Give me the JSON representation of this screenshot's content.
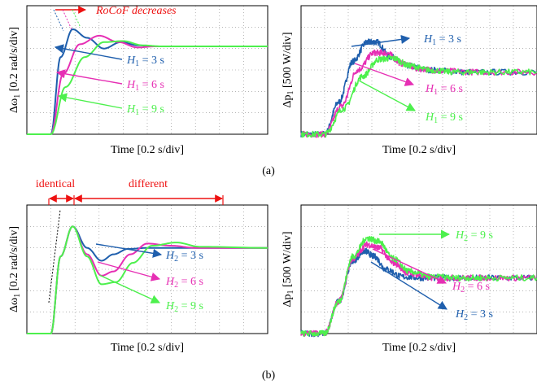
{
  "colors": {
    "blue": "#1f5fad",
    "magenta": "#e62fb4",
    "green": "#4df04d",
    "red": "#ee1111",
    "frame": "#000000",
    "grid": "#888888"
  },
  "captions": {
    "a": "(a)",
    "b": "(b)"
  },
  "chart_data": [
    {
      "id": "a-left",
      "type": "line",
      "xlabel": "Time [0.2 s/div]",
      "ylabel_parts": [
        "Δω",
        "1",
        " [0.2 rad/s/div]"
      ],
      "xlim": [
        0,
        10
      ],
      "ylim": [
        0,
        6
      ],
      "series": [
        {
          "name": "H1 = 3 s",
          "color": "blue",
          "x": [
            0,
            1,
            1.4,
            1.9,
            2.5,
            3.2,
            3.9,
            4.6,
            5.3,
            6,
            7,
            8,
            10
          ],
          "y": [
            0,
            0,
            3.6,
            4.9,
            4.5,
            4.0,
            4.3,
            4.15,
            4.1,
            4.1,
            4.1,
            4.1,
            4.1
          ]
        },
        {
          "name": "H1 = 6 s",
          "color": "magenta",
          "x": [
            0,
            1,
            1.5,
            2.2,
            3,
            3.8,
            4.6,
            5.3,
            6,
            7,
            8,
            10
          ],
          "y": [
            0,
            0,
            2.8,
            4.2,
            4.6,
            4.3,
            4.05,
            4.1,
            4.1,
            4.1,
            4.1,
            4.1
          ]
        },
        {
          "name": "H1 = 9 s",
          "color": "green",
          "x": [
            0,
            1,
            1.6,
            2.4,
            3.2,
            4,
            4.8,
            5.6,
            6.5,
            8,
            10
          ],
          "y": [
            0,
            0,
            2.2,
            3.6,
            4.3,
            4.35,
            4.15,
            4.1,
            4.1,
            4.1,
            4.1
          ]
        }
      ],
      "annotations": [
        {
          "parts": [
            "H",
            "1",
            " = 3 s"
          ],
          "color": "blue"
        },
        {
          "parts": [
            "H",
            "1",
            " = 6 s"
          ],
          "color": "magenta"
        },
        {
          "parts": [
            "H",
            "1",
            " = 9 s"
          ],
          "color": "green"
        },
        {
          "parts": [
            "RoCoF decreases"
          ],
          "color": "red"
        }
      ]
    },
    {
      "id": "a-right",
      "type": "line",
      "xlabel": "Time [0.2 s/div]",
      "ylabel_parts": [
        "Δp",
        "1",
        " [500 W/div]"
      ],
      "xlim": [
        0,
        10
      ],
      "ylim": [
        0,
        6
      ],
      "series": [
        {
          "name": "H1 = 3 s",
          "color": "blue",
          "x": [
            0,
            1,
            1.6,
            2.2,
            2.8,
            3.2,
            3.8,
            4.5,
            5.5,
            7,
            10
          ],
          "y": [
            0,
            0,
            1.5,
            3.4,
            4.3,
            4.3,
            3.6,
            3.2,
            3.0,
            2.9,
            2.9
          ]
        },
        {
          "name": "H1 = 6 s",
          "color": "magenta",
          "x": [
            0,
            1,
            1.7,
            2.4,
            3.1,
            3.6,
            4.3,
            5,
            6,
            7.5,
            10
          ],
          "y": [
            0,
            0,
            1.3,
            3.0,
            3.8,
            3.8,
            3.3,
            3.05,
            2.95,
            2.9,
            2.9
          ]
        },
        {
          "name": "H1 = 9 s",
          "color": "green",
          "x": [
            0,
            1,
            1.8,
            2.6,
            3.3,
            3.9,
            4.6,
            5.4,
            6.5,
            8,
            10
          ],
          "y": [
            0,
            0,
            1.2,
            2.7,
            3.5,
            3.55,
            3.2,
            3.0,
            2.9,
            2.9,
            2.9
          ]
        }
      ],
      "annotations": [
        {
          "parts": [
            "H",
            "1",
            " = 3 s"
          ],
          "color": "blue"
        },
        {
          "parts": [
            "H",
            "1",
            " = 6 s"
          ],
          "color": "magenta"
        },
        {
          "parts": [
            "H",
            "1",
            " = 9 s"
          ],
          "color": "green"
        }
      ]
    },
    {
      "id": "b-left",
      "type": "line",
      "xlabel": "Time [0.2 s/div]",
      "ylabel_parts": [
        "Δω",
        "1",
        " [0.2 rad/s/div]"
      ],
      "xlim": [
        0,
        10
      ],
      "ylim": [
        0,
        6
      ],
      "series": [
        {
          "name": "H2 = 3 s",
          "color": "blue",
          "x": [
            0,
            1,
            1.4,
            1.9,
            2.5,
            3.1,
            3.6,
            4.2,
            5,
            6,
            7,
            8,
            10
          ],
          "y": [
            0,
            0,
            3.6,
            5.0,
            4.0,
            3.4,
            3.7,
            3.95,
            4.0,
            4.0,
            4.0,
            4.0,
            4.0
          ]
        },
        {
          "name": "H2 = 6 s",
          "color": "magenta",
          "x": [
            0,
            1,
            1.4,
            1.9,
            2.5,
            3.1,
            3.6,
            4.3,
            5,
            6,
            7,
            10
          ],
          "y": [
            0,
            0,
            3.6,
            5.0,
            3.7,
            2.7,
            2.9,
            3.7,
            4.2,
            4.1,
            4.0,
            4.0
          ]
        },
        {
          "name": "H2 = 9 s",
          "color": "green",
          "x": [
            0,
            1,
            1.4,
            1.9,
            2.5,
            3.1,
            3.7,
            4.4,
            5.2,
            6.2,
            7.2,
            10
          ],
          "y": [
            0,
            0,
            3.6,
            5.0,
            3.6,
            2.3,
            2.4,
            3.3,
            4.1,
            4.25,
            4.05,
            4.0
          ]
        }
      ],
      "annotations": [
        {
          "parts": [
            "H",
            "2",
            " = 3 s"
          ],
          "color": "blue"
        },
        {
          "parts": [
            "H",
            "2",
            " = 6 s"
          ],
          "color": "magenta"
        },
        {
          "parts": [
            "H",
            "2",
            " = 9 s"
          ],
          "color": "green"
        },
        {
          "parts": [
            "identical"
          ],
          "color": "red"
        },
        {
          "parts": [
            "different"
          ],
          "color": "red"
        }
      ]
    },
    {
      "id": "b-right",
      "type": "line",
      "xlabel": "Time [0.2 s/div]",
      "ylabel_parts": [
        "Δp",
        "1",
        " [500 W/div]"
      ],
      "xlim": [
        0,
        10
      ],
      "ylim": [
        0,
        6
      ],
      "series": [
        {
          "name": "H2 = 3 s",
          "color": "blue",
          "x": [
            0,
            1,
            1.6,
            2.2,
            2.7,
            3.1,
            3.6,
            4.3,
            5.2,
            6.5,
            8,
            10
          ],
          "y": [
            0,
            0,
            1.5,
            3.4,
            3.85,
            3.6,
            3.0,
            2.65,
            2.6,
            2.6,
            2.6,
            2.6
          ]
        },
        {
          "name": "H2 = 6 s",
          "color": "magenta",
          "x": [
            0,
            1,
            1.6,
            2.2,
            2.8,
            3.3,
            3.9,
            4.6,
            5.5,
            6.8,
            8,
            10
          ],
          "y": [
            0,
            0,
            1.5,
            3.5,
            4.15,
            4.0,
            3.3,
            2.8,
            2.6,
            2.6,
            2.6,
            2.6
          ]
        },
        {
          "name": "H2 = 9 s",
          "color": "green",
          "x": [
            0,
            1,
            1.6,
            2.2,
            2.8,
            3.3,
            3.9,
            4.6,
            5.5,
            6.8,
            8,
            10
          ],
          "y": [
            0,
            0,
            1.5,
            3.6,
            4.45,
            4.3,
            3.5,
            2.9,
            2.65,
            2.6,
            2.6,
            2.6
          ]
        }
      ],
      "annotations": [
        {
          "parts": [
            "H",
            "2",
            " = 9 s"
          ],
          "color": "green"
        },
        {
          "parts": [
            "H",
            "2",
            " = 6 s"
          ],
          "color": "magenta"
        },
        {
          "parts": [
            "H",
            "2",
            " = 3 s"
          ],
          "color": "blue"
        }
      ]
    }
  ]
}
